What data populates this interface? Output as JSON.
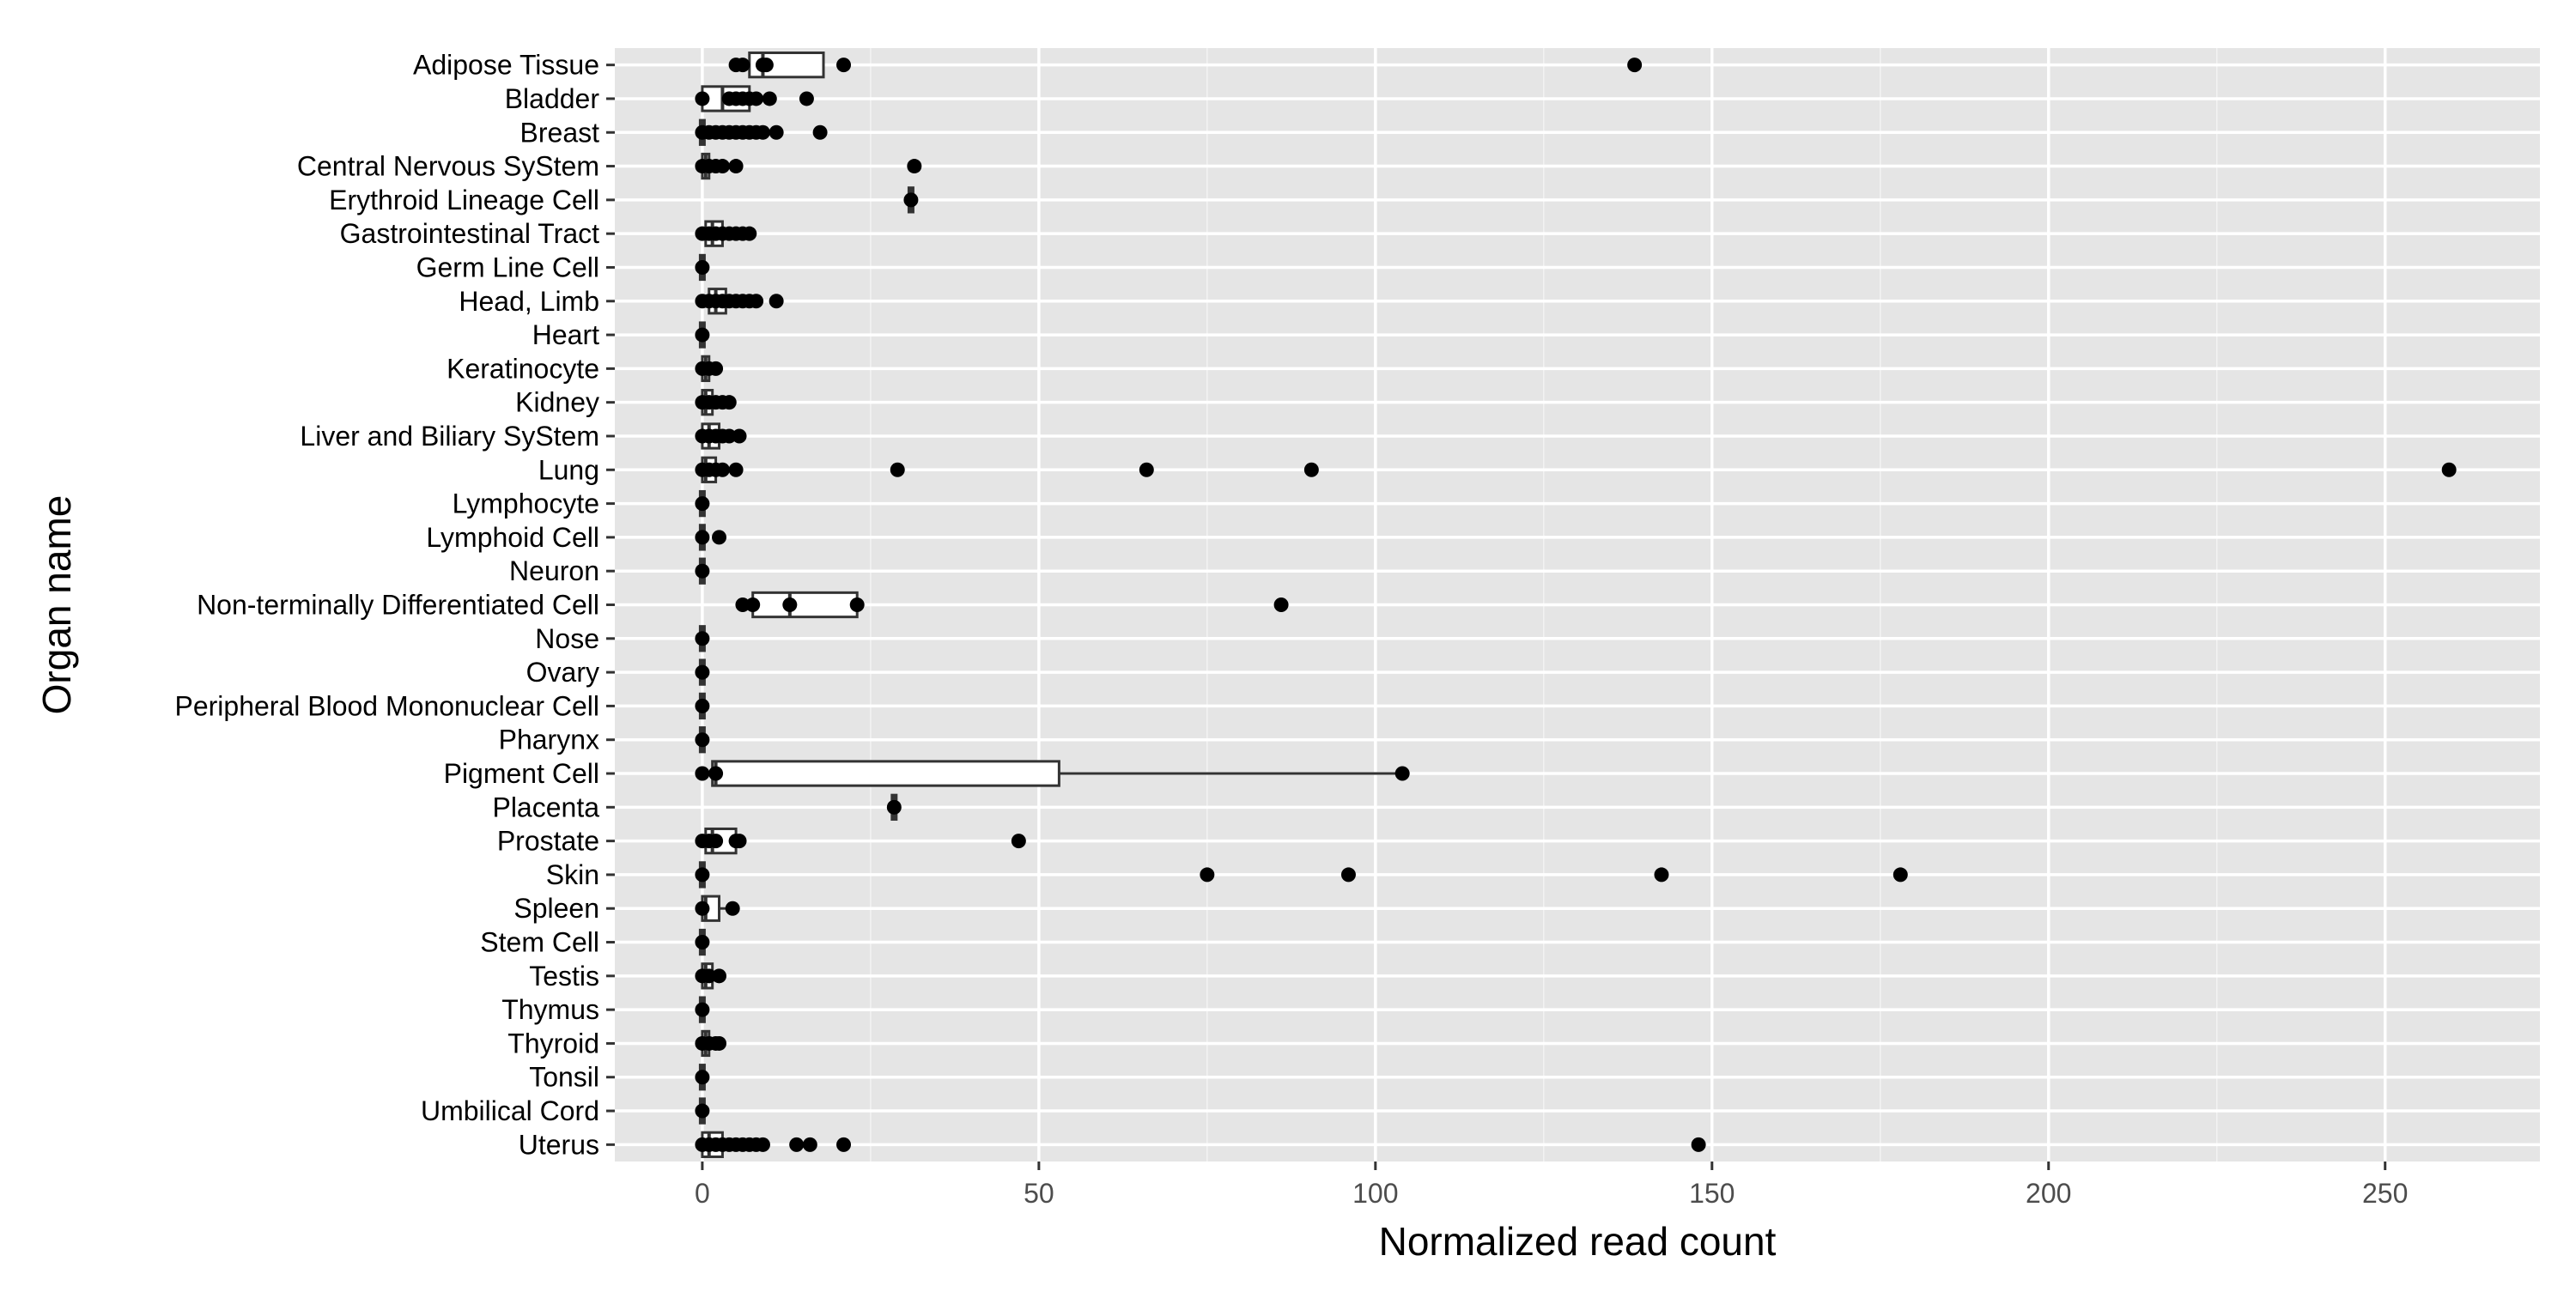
{
  "chart_data": {
    "type": "boxplot",
    "orientation": "horizontal",
    "xlabel": "Normalized read count",
    "ylabel": "Organ name",
    "xlim": [
      -13,
      273
    ],
    "x_ticks": [
      0,
      50,
      100,
      150,
      200,
      250
    ],
    "grid": true,
    "legend": "none",
    "colors": {
      "panel": "#E5E5E5",
      "gridline": "#FFFFFF",
      "point": "#000000",
      "box_fill": "#FFFFFF",
      "box_stroke": "#333333",
      "tick_label": "#4D4D4D",
      "axis_title": "#000000"
    },
    "categories": [
      {
        "name": "Adipose Tissue",
        "box": [
          6,
          7,
          9,
          18,
          18
        ],
        "points": [
          5,
          6,
          9,
          9.5,
          21,
          138.5
        ]
      },
      {
        "name": "Bladder",
        "box": [
          0,
          0,
          3,
          7,
          8
        ],
        "points": [
          0,
          4,
          5,
          6,
          7,
          8,
          10,
          15.5
        ]
      },
      {
        "name": "Breast",
        "box": [
          0,
          0,
          0,
          0,
          0
        ],
        "points": [
          0,
          1,
          2,
          3,
          4,
          5,
          6,
          7,
          8,
          9,
          11,
          17.5
        ]
      },
      {
        "name": "Central Nervous SyStem",
        "box": [
          0,
          0,
          0.5,
          1,
          2
        ],
        "points": [
          0,
          1,
          2,
          3,
          5,
          31.5
        ]
      },
      {
        "name": "Erythroid Lineage Cell",
        "box": [
          31,
          31,
          31,
          31,
          31
        ],
        "points": [
          31
        ]
      },
      {
        "name": "Gastrointestinal Tract",
        "box": [
          0,
          0.5,
          1.5,
          3,
          4
        ],
        "points": [
          0,
          1,
          2,
          3,
          4,
          5,
          6,
          7
        ]
      },
      {
        "name": "Germ Line Cell",
        "box": [
          0,
          0,
          0,
          0,
          0
        ],
        "points": [
          0
        ]
      },
      {
        "name": "Head, Limb",
        "box": [
          0,
          1,
          2,
          3.5,
          5
        ],
        "points": [
          0,
          1,
          2,
          3,
          4,
          5,
          6,
          7,
          8,
          11
        ]
      },
      {
        "name": "Heart",
        "box": [
          0,
          0,
          0,
          0,
          0
        ],
        "points": [
          0
        ]
      },
      {
        "name": "Keratinocyte",
        "box": [
          0,
          0,
          0.5,
          1,
          1
        ],
        "points": [
          0,
          1,
          2
        ]
      },
      {
        "name": "Kidney",
        "box": [
          0,
          0,
          0.5,
          1.5,
          2
        ],
        "points": [
          0,
          1,
          2,
          3,
          4
        ]
      },
      {
        "name": "Liver and Biliary SyStem",
        "box": [
          0,
          0,
          1,
          2.5,
          4
        ],
        "points": [
          0,
          1,
          2,
          3,
          4,
          5.5
        ]
      },
      {
        "name": "Lung",
        "box": [
          0,
          0,
          0.5,
          2,
          3
        ],
        "points": [
          0,
          1,
          2,
          3,
          5,
          29,
          66,
          90.5,
          259.5
        ]
      },
      {
        "name": "Lymphocyte",
        "box": [
          0,
          0,
          0,
          0,
          0
        ],
        "points": [
          0
        ]
      },
      {
        "name": "Lymphoid Cell",
        "box": [
          0,
          0,
          0,
          0,
          0
        ],
        "points": [
          0,
          2.5
        ]
      },
      {
        "name": "Neuron",
        "box": [
          0,
          0,
          0,
          0,
          0
        ],
        "points": [
          0
        ]
      },
      {
        "name": "Non-terminally Differentiated Cell",
        "box": [
          7,
          7.5,
          13,
          23,
          23
        ],
        "points": [
          6,
          7.5,
          13,
          23,
          86
        ]
      },
      {
        "name": "Nose",
        "box": [
          0,
          0,
          0,
          0,
          0
        ],
        "points": [
          0
        ]
      },
      {
        "name": "Ovary",
        "box": [
          0,
          0,
          0,
          0,
          0
        ],
        "points": [
          0
        ]
      },
      {
        "name": "Peripheral Blood Mononuclear Cell",
        "box": [
          0,
          0,
          0,
          0,
          0
        ],
        "points": [
          0
        ]
      },
      {
        "name": "Pharynx",
        "box": [
          0,
          0,
          0,
          0,
          0
        ],
        "points": [
          0
        ]
      },
      {
        "name": "Pigment Cell",
        "box": [
          0,
          1.5,
          2,
          53,
          104
        ],
        "points": [
          0,
          2,
          104
        ]
      },
      {
        "name": "Placenta",
        "box": [
          28.5,
          28.5,
          28.5,
          28.5,
          28.5
        ],
        "points": [
          28.5
        ]
      },
      {
        "name": "Prostate",
        "box": [
          0,
          0.5,
          1.5,
          5,
          6
        ],
        "points": [
          0,
          1,
          2,
          5,
          5.5,
          47
        ]
      },
      {
        "name": "Skin",
        "box": [
          0,
          0,
          0,
          0,
          0
        ],
        "points": [
          0,
          75,
          96,
          142.5,
          178
        ]
      },
      {
        "name": "Spleen",
        "box": [
          0,
          0,
          0.5,
          2.5,
          4
        ],
        "points": [
          0,
          4.5
        ]
      },
      {
        "name": "Stem Cell",
        "box": [
          0,
          0,
          0,
          0,
          0
        ],
        "points": [
          0
        ]
      },
      {
        "name": "Testis",
        "box": [
          0,
          0,
          0.5,
          1.5,
          2
        ],
        "points": [
          0,
          1,
          2.5
        ]
      },
      {
        "name": "Thymus",
        "box": [
          0,
          0,
          0,
          0,
          0
        ],
        "points": [
          0
        ]
      },
      {
        "name": "Thyroid",
        "box": [
          0,
          0,
          0.5,
          1,
          2
        ],
        "points": [
          0,
          1,
          2,
          2.5
        ]
      },
      {
        "name": "Tonsil",
        "box": [
          0,
          0,
          0,
          0,
          0
        ],
        "points": [
          0
        ]
      },
      {
        "name": "Umbilical Cord",
        "box": [
          0,
          0,
          0,
          0,
          0
        ],
        "points": [
          0
        ]
      },
      {
        "name": "Uterus",
        "box": [
          0,
          0,
          1,
          3,
          5
        ],
        "points": [
          0,
          1,
          2,
          3,
          4,
          5,
          6,
          7,
          8,
          9,
          14,
          16,
          21,
          148
        ]
      }
    ]
  }
}
